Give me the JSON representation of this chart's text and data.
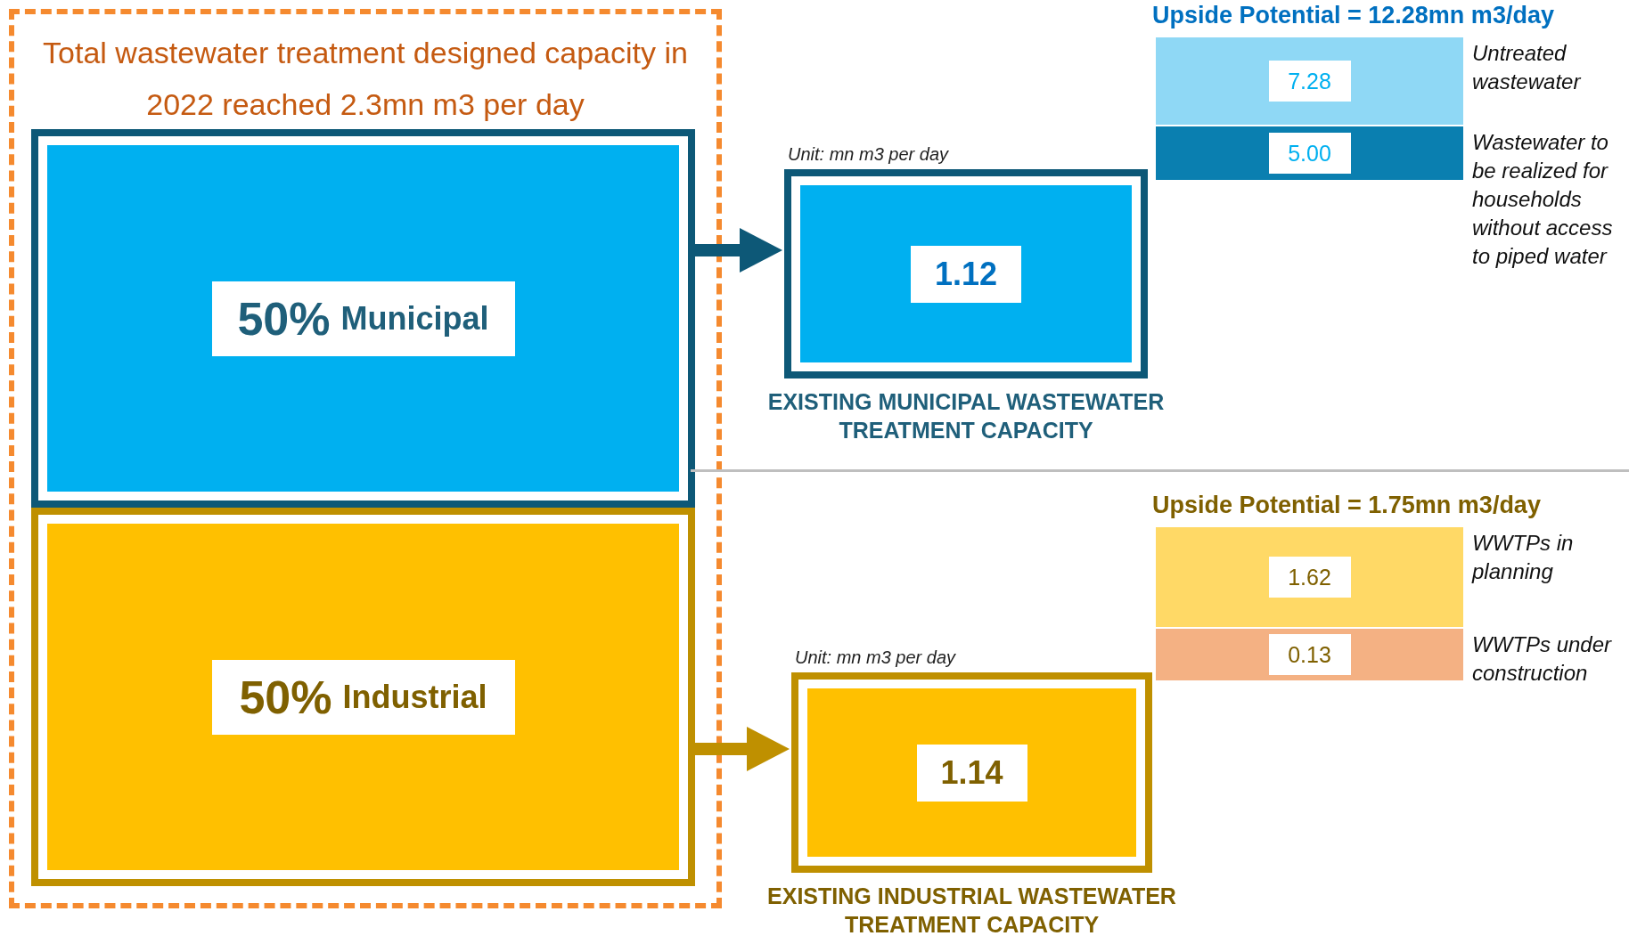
{
  "chart_data": [
    {
      "type": "other",
      "data_labels": true,
      "title": "Total wastewater treatment designed capacity in 2022 reached 2.3mn m3 per day",
      "categories": [
        "Municipal",
        "Industrial"
      ],
      "values": [
        50,
        50
      ],
      "value_labels": [
        "50%",
        "50%"
      ],
      "colors": [
        "#00b0f0",
        "#ffc000"
      ]
    },
    {
      "type": "other",
      "data_labels": true,
      "title": "EXISTING MUNICIPAL WASTEWATER TREATMENT CAPACITY",
      "subtitle": "Unit: mn m3 per day",
      "values": [
        1.12
      ],
      "color": "#00b0f0"
    },
    {
      "type": "other",
      "data_labels": true,
      "title": "Upside Potential = 12.28mn m3/day",
      "categories": [
        "Untreated wastewater",
        "Wastewater to be realized for households without access to piped water"
      ],
      "values": [
        7.28,
        5
      ],
      "value_labels": [
        "7.28",
        "5.00"
      ],
      "colors": [
        "#8fd8f5",
        "#0a7fb0"
      ]
    },
    {
      "type": "other",
      "data_labels": true,
      "title": "EXISTING INDUSTRIAL WASTEWATER TREATMENT CAPACITY",
      "subtitle": "Unit: mn m3 per day",
      "values": [
        1.14
      ],
      "color": "#ffc000"
    },
    {
      "type": "other",
      "data_labels": true,
      "title": "Upside Potential = 1.75mn m3/day",
      "categories": [
        "WWTPs in planning",
        "WWTPs under construction"
      ],
      "values": [
        1.62,
        0.13
      ],
      "value_labels": [
        "1.62",
        "0.13"
      ],
      "colors": [
        "#ffd966",
        "#f4b183"
      ]
    }
  ]
}
